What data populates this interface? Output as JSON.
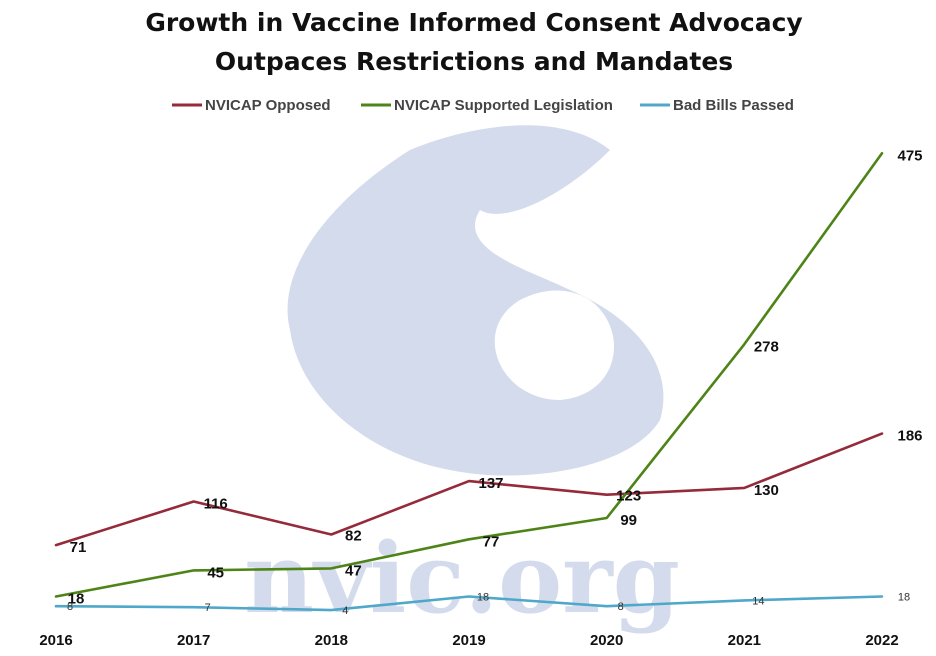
{
  "chart_data": {
    "type": "line",
    "title": [
      "Growth in Vaccine Informed Consent Advocacy",
      "Outpaces Restrictions and Mandates"
    ],
    "categories": [
      "2016",
      "2017",
      "2018",
      "2019",
      "2020",
      "2021",
      "2022"
    ],
    "series": [
      {
        "name": "NVICAP Opposed",
        "color": "#952a3b",
        "values": [
          71,
          116,
          82,
          137,
          123,
          130,
          186
        ]
      },
      {
        "name": "NVICAP Supported Legislation",
        "color": "#4e8417",
        "values": [
          18,
          45,
          47,
          77,
          99,
          278,
          475
        ]
      },
      {
        "name": "Bad Bills Passed",
        "color": "#4fa8c9",
        "values": [
          8,
          7,
          4,
          18,
          8,
          14,
          18
        ]
      }
    ],
    "ylim": [
      0,
      500
    ],
    "grid": false,
    "legend_position": "top",
    "data_labels": true,
    "watermark": {
      "text": "nvic.org",
      "color": "#d4dbec"
    }
  }
}
